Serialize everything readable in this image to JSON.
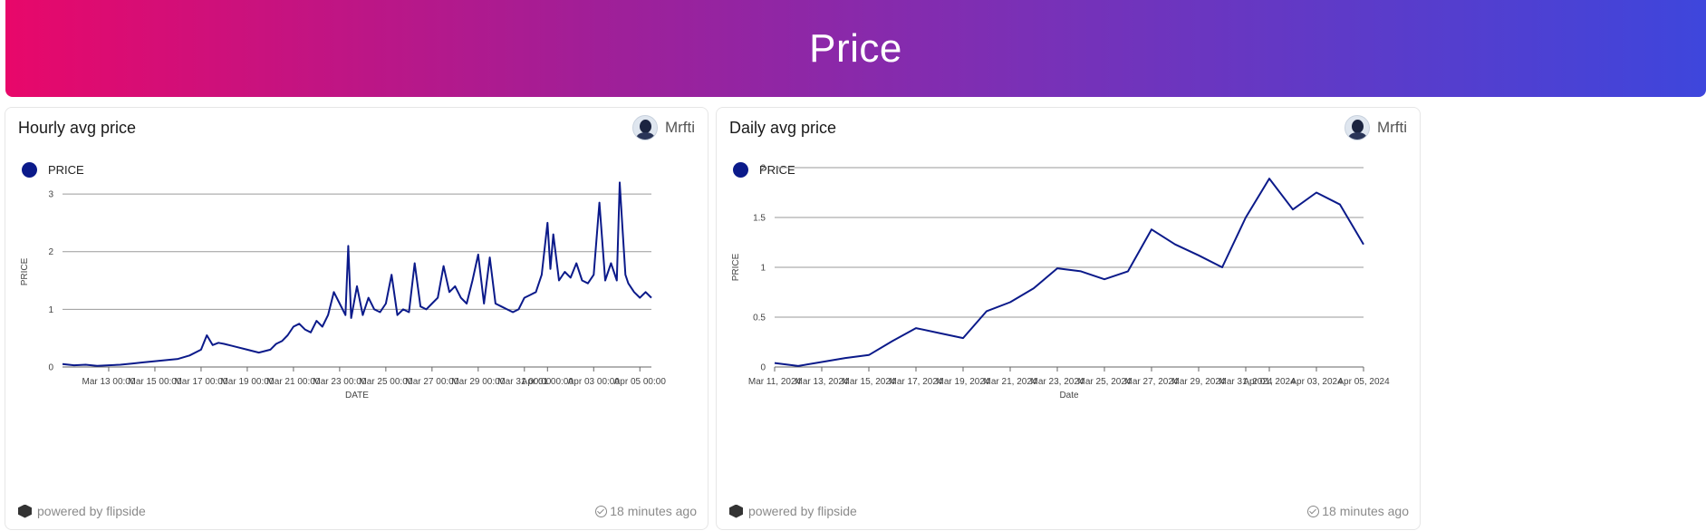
{
  "header": {
    "title": "Price"
  },
  "cards": [
    {
      "title": "Hourly avg price",
      "author": "Mrfti",
      "legend_label": "PRICE",
      "footer_left": "powered by flipside",
      "footer_right": "18 minutes ago"
    },
    {
      "title": "Daily avg price",
      "author": "Mrfti",
      "legend_label": "PRICE",
      "footer_left": "powered by flipside",
      "footer_right": "18 minutes ago"
    }
  ],
  "colors": {
    "series": "#0b1a8a",
    "grid": "#9a9a9a"
  },
  "chart_data": [
    {
      "type": "line",
      "xlabel": "DATE",
      "ylabel": "PRICE",
      "xlim": [
        "2024-03-11 00:00",
        "2024-04-05 12:00"
      ],
      "ylim": [
        0,
        3.3
      ],
      "yticks": [
        0,
        1,
        2,
        3
      ],
      "xticks": [
        "Mar 13 00:00",
        "Mar 15 00:00",
        "Mar 17 00:00",
        "Mar 19 00:00",
        "Mar 21 00:00",
        "Mar 23 00:00",
        "Mar 25 00:00",
        "Mar 27 00:00",
        "Mar 29 00:00",
        "Mar 31 00:00",
        "Apr 01 00:00",
        "Apr 03 00:00",
        "Apr 05 00:00"
      ],
      "xtick_dates": [
        "2024-03-13 00:00",
        "2024-03-15 00:00",
        "2024-03-17 00:00",
        "2024-03-19 00:00",
        "2024-03-21 00:00",
        "2024-03-23 00:00",
        "2024-03-25 00:00",
        "2024-03-27 00:00",
        "2024-03-29 00:00",
        "2024-03-31 00:00",
        "2024-04-01 00:00",
        "2024-04-03 00:00",
        "2024-04-05 00:00"
      ],
      "grid": true,
      "series": [
        {
          "name": "PRICE",
          "x": [
            "2024-03-11 00:00",
            "2024-03-11 12:00",
            "2024-03-12 00:00",
            "2024-03-12 12:00",
            "2024-03-13 00:00",
            "2024-03-13 12:00",
            "2024-03-14 00:00",
            "2024-03-14 12:00",
            "2024-03-15 00:00",
            "2024-03-15 12:00",
            "2024-03-16 00:00",
            "2024-03-16 12:00",
            "2024-03-17 00:00",
            "2024-03-17 06:00",
            "2024-03-17 12:00",
            "2024-03-17 18:00",
            "2024-03-18 00:00",
            "2024-03-18 12:00",
            "2024-03-19 00:00",
            "2024-03-19 12:00",
            "2024-03-20 00:00",
            "2024-03-20 06:00",
            "2024-03-20 12:00",
            "2024-03-20 18:00",
            "2024-03-21 00:00",
            "2024-03-21 06:00",
            "2024-03-21 12:00",
            "2024-03-21 18:00",
            "2024-03-22 00:00",
            "2024-03-22 06:00",
            "2024-03-22 12:00",
            "2024-03-22 18:00",
            "2024-03-23 00:00",
            "2024-03-23 06:00",
            "2024-03-23 09:00",
            "2024-03-23 12:00",
            "2024-03-23 18:00",
            "2024-03-24 00:00",
            "2024-03-24 06:00",
            "2024-03-24 12:00",
            "2024-03-24 18:00",
            "2024-03-25 00:00",
            "2024-03-25 06:00",
            "2024-03-25 12:00",
            "2024-03-25 18:00",
            "2024-03-26 00:00",
            "2024-03-26 06:00",
            "2024-03-26 12:00",
            "2024-03-26 18:00",
            "2024-03-27 00:00",
            "2024-03-27 06:00",
            "2024-03-27 12:00",
            "2024-03-27 18:00",
            "2024-03-28 00:00",
            "2024-03-28 06:00",
            "2024-03-28 12:00",
            "2024-03-28 18:00",
            "2024-03-29 00:00",
            "2024-03-29 06:00",
            "2024-03-29 12:00",
            "2024-03-29 18:00",
            "2024-03-30 00:00",
            "2024-03-30 06:00",
            "2024-03-30 12:00",
            "2024-03-30 18:00",
            "2024-03-31 00:00",
            "2024-03-31 06:00",
            "2024-03-31 12:00",
            "2024-03-31 18:00",
            "2024-04-01 00:00",
            "2024-04-01 03:00",
            "2024-04-01 06:00",
            "2024-04-01 12:00",
            "2024-04-01 18:00",
            "2024-04-02 00:00",
            "2024-04-02 06:00",
            "2024-04-02 12:00",
            "2024-04-02 18:00",
            "2024-04-03 00:00",
            "2024-04-03 06:00",
            "2024-04-03 12:00",
            "2024-04-03 18:00",
            "2024-04-04 00:00",
            "2024-04-04 03:00",
            "2024-04-04 06:00",
            "2024-04-04 09:00",
            "2024-04-04 12:00",
            "2024-04-04 18:00",
            "2024-04-05 00:00",
            "2024-04-05 06:00",
            "2024-04-05 12:00"
          ],
          "y": [
            0.05,
            0.03,
            0.04,
            0.02,
            0.03,
            0.04,
            0.06,
            0.08,
            0.1,
            0.12,
            0.14,
            0.2,
            0.3,
            0.55,
            0.38,
            0.42,
            0.4,
            0.35,
            0.3,
            0.25,
            0.3,
            0.4,
            0.45,
            0.55,
            0.7,
            0.75,
            0.65,
            0.6,
            0.8,
            0.7,
            0.9,
            1.3,
            1.1,
            0.9,
            2.1,
            0.85,
            1.4,
            0.9,
            1.2,
            1.0,
            0.95,
            1.1,
            1.6,
            0.9,
            1.0,
            0.95,
            1.8,
            1.05,
            1.0,
            1.1,
            1.2,
            1.75,
            1.3,
            1.4,
            1.2,
            1.1,
            1.5,
            1.95,
            1.1,
            1.9,
            1.1,
            1.05,
            1.0,
            0.95,
            1.0,
            1.2,
            1.25,
            1.3,
            1.6,
            2.5,
            1.7,
            2.3,
            1.5,
            1.65,
            1.55,
            1.8,
            1.5,
            1.45,
            1.6,
            2.85,
            1.5,
            1.8,
            1.5,
            3.2,
            2.4,
            1.6,
            1.45,
            1.3,
            1.2,
            1.3,
            1.2
          ]
        }
      ]
    },
    {
      "type": "line",
      "xlabel": "Date",
      "ylabel": "PRICE",
      "xlim": [
        "2024-03-11",
        "2024-04-05"
      ],
      "ylim": [
        0,
        2
      ],
      "yticks": [
        0,
        0.5,
        1,
        1.5,
        2
      ],
      "ytick_labels": [
        "0",
        "0.5",
        "1",
        "1.5",
        "2"
      ],
      "xticks": [
        "Mar 11, 2024",
        "Mar 13, 2024",
        "Mar 15, 2024",
        "Mar 17, 2024",
        "Mar 19, 2024",
        "Mar 21, 2024",
        "Mar 23, 2024",
        "Mar 25, 2024",
        "Mar 27, 2024",
        "Mar 29, 2024",
        "Mar 31, 2024",
        "Apr 01, 2024",
        "Apr 03, 2024",
        "Apr 05, 2024"
      ],
      "xtick_dates": [
        "2024-03-11",
        "2024-03-13",
        "2024-03-15",
        "2024-03-17",
        "2024-03-19",
        "2024-03-21",
        "2024-03-23",
        "2024-03-25",
        "2024-03-27",
        "2024-03-29",
        "2024-03-31",
        "2024-04-01",
        "2024-04-03",
        "2024-04-05"
      ],
      "grid": true,
      "series": [
        {
          "name": "PRICE",
          "x": [
            "2024-03-11",
            "2024-03-12",
            "2024-03-13",
            "2024-03-14",
            "2024-03-15",
            "2024-03-16",
            "2024-03-17",
            "2024-03-18",
            "2024-03-19",
            "2024-03-20",
            "2024-03-21",
            "2024-03-22",
            "2024-03-23",
            "2024-03-24",
            "2024-03-25",
            "2024-03-26",
            "2024-03-27",
            "2024-03-28",
            "2024-03-29",
            "2024-03-30",
            "2024-03-31",
            "2024-04-01",
            "2024-04-02",
            "2024-04-03",
            "2024-04-04",
            "2024-04-05"
          ],
          "y": [
            0.04,
            0.01,
            0.05,
            0.09,
            0.12,
            0.26,
            0.39,
            0.34,
            0.29,
            0.56,
            0.65,
            0.79,
            0.99,
            0.96,
            0.88,
            0.96,
            1.38,
            1.23,
            1.12,
            1.0,
            1.5,
            1.89,
            1.58,
            1.75,
            1.63,
            1.23
          ]
        }
      ]
    }
  ]
}
